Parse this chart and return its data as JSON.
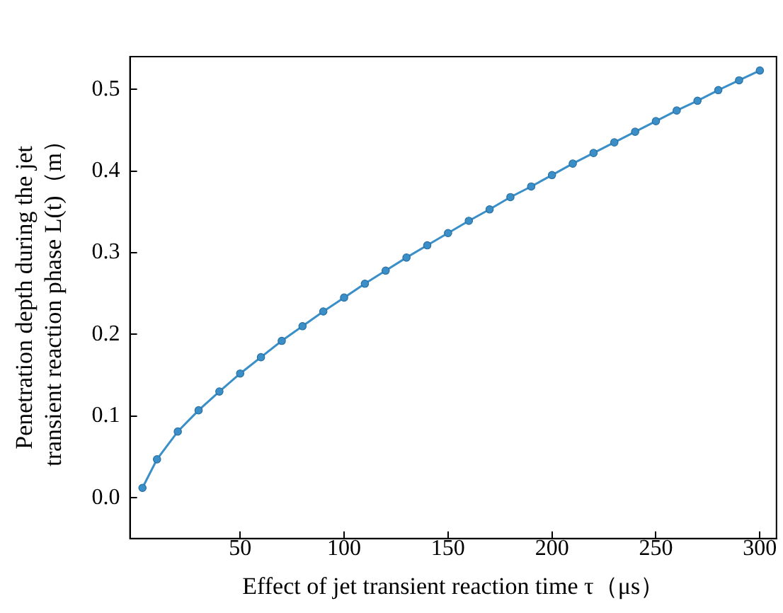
{
  "chart_data": {
    "type": "line",
    "xlabel": "Effect of jet transient reaction time τ（μs）",
    "ylabel": "Penetration depth during the jet\ntransient reaction phase L(t)（m）",
    "x": [
      3,
      10,
      20,
      30,
      40,
      50,
      60,
      70,
      80,
      90,
      100,
      110,
      120,
      130,
      140,
      150,
      160,
      170,
      180,
      190,
      200,
      210,
      220,
      230,
      240,
      250,
      260,
      270,
      280,
      290,
      300
    ],
    "series": [
      {
        "color": "#3a8fc8",
        "values": [
          0.012,
          0.047,
          0.081,
          0.107,
          0.13,
          0.152,
          0.172,
          0.192,
          0.21,
          0.228,
          0.245,
          0.262,
          0.278,
          0.294,
          0.309,
          0.324,
          0.339,
          0.353,
          0.368,
          0.381,
          0.395,
          0.409,
          0.422,
          0.435,
          0.448,
          0.461,
          0.474,
          0.486,
          0.499,
          0.511,
          0.523
        ]
      }
    ],
    "xlim": [
      -3,
      308
    ],
    "xticks": [
      50,
      100,
      150,
      200,
      250,
      300
    ],
    "ylim": [
      -0.05,
      0.54
    ],
    "yticks": [
      {
        "value": 0,
        "label": "0.0"
      },
      0.1,
      0.2,
      0.3,
      0.4,
      0.5
    ],
    "marker": "circle",
    "grid": false,
    "legend": false
  }
}
